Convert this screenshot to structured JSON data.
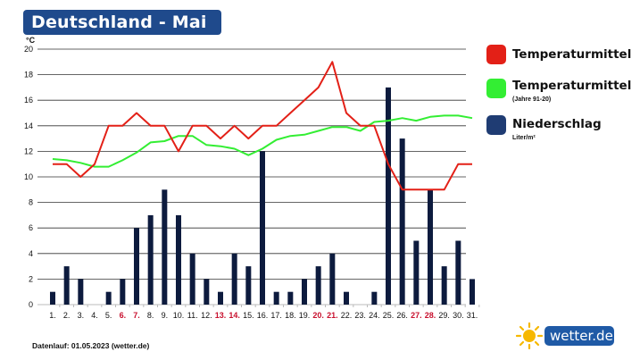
{
  "header": {
    "title": "Deutschland - Mai"
  },
  "legend": {
    "items": [
      {
        "label": "Temperaturmittel",
        "sub": "",
        "color": "#e32017"
      },
      {
        "label": "Temperaturmittel",
        "sub": "(Jahre 91-20)",
        "color": "#33ee33"
      },
      {
        "label": "Niederschlag",
        "sub": "Liter/m²",
        "color": "#1f3c73"
      }
    ]
  },
  "footer": {
    "text": "Datenlauf: 01.05.2023 (wetter.de)"
  },
  "logo": {
    "text": "wetter.de"
  },
  "chart_data": {
    "type": "bar+line",
    "unit_label": "°C",
    "ylim": [
      0,
      20
    ],
    "yticks": [
      0,
      2,
      4,
      6,
      8,
      10,
      12,
      14,
      16,
      18,
      20
    ],
    "categories": [
      "1.",
      "2.",
      "3.",
      "4.",
      "5.",
      "6.",
      "7.",
      "8.",
      "9.",
      "10.",
      "11.",
      "12.",
      "13.",
      "14.",
      "15.",
      "16.",
      "17.",
      "18.",
      "19.",
      "20.",
      "21.",
      "22.",
      "23.",
      "24.",
      "25.",
      "26.",
      "27.",
      "28.",
      "29.",
      "30.",
      "31."
    ],
    "highlight_categories": [
      "6.",
      "7.",
      "13.",
      "14.",
      "20.",
      "21.",
      "27.",
      "28."
    ],
    "highlight_color": "#c8102e",
    "series": [
      {
        "name": "Temperaturmittel",
        "kind": "line",
        "color": "#e32017",
        "values": [
          11,
          11,
          10,
          11,
          14,
          14,
          15,
          14,
          14,
          12,
          14,
          14,
          13,
          14,
          13,
          14,
          14,
          15,
          16,
          17,
          19,
          15,
          14,
          14,
          11,
          9,
          9,
          9,
          9,
          11,
          11
        ]
      },
      {
        "name": "Temperaturmittel (Jahre 91-20)",
        "kind": "line",
        "color": "#33ee33",
        "values": [
          11.4,
          11.3,
          11.1,
          10.8,
          10.8,
          11.3,
          11.9,
          12.7,
          12.8,
          13.2,
          13.2,
          12.5,
          12.4,
          12.2,
          11.7,
          12.2,
          12.9,
          13.2,
          13.3,
          13.6,
          13.9,
          13.9,
          13.6,
          14.3,
          14.4,
          14.6,
          14.4,
          14.7,
          14.8,
          14.8,
          14.6
        ]
      },
      {
        "name": "Niederschlag",
        "kind": "bar",
        "color": "#0d1b3e",
        "values": [
          1,
          3,
          2,
          0,
          1,
          2,
          6,
          7,
          9,
          7,
          4,
          2,
          1,
          4,
          3,
          12,
          1,
          1,
          2,
          3,
          4,
          1,
          0,
          1,
          17,
          13,
          5,
          9,
          3,
          5,
          2
        ]
      }
    ]
  }
}
